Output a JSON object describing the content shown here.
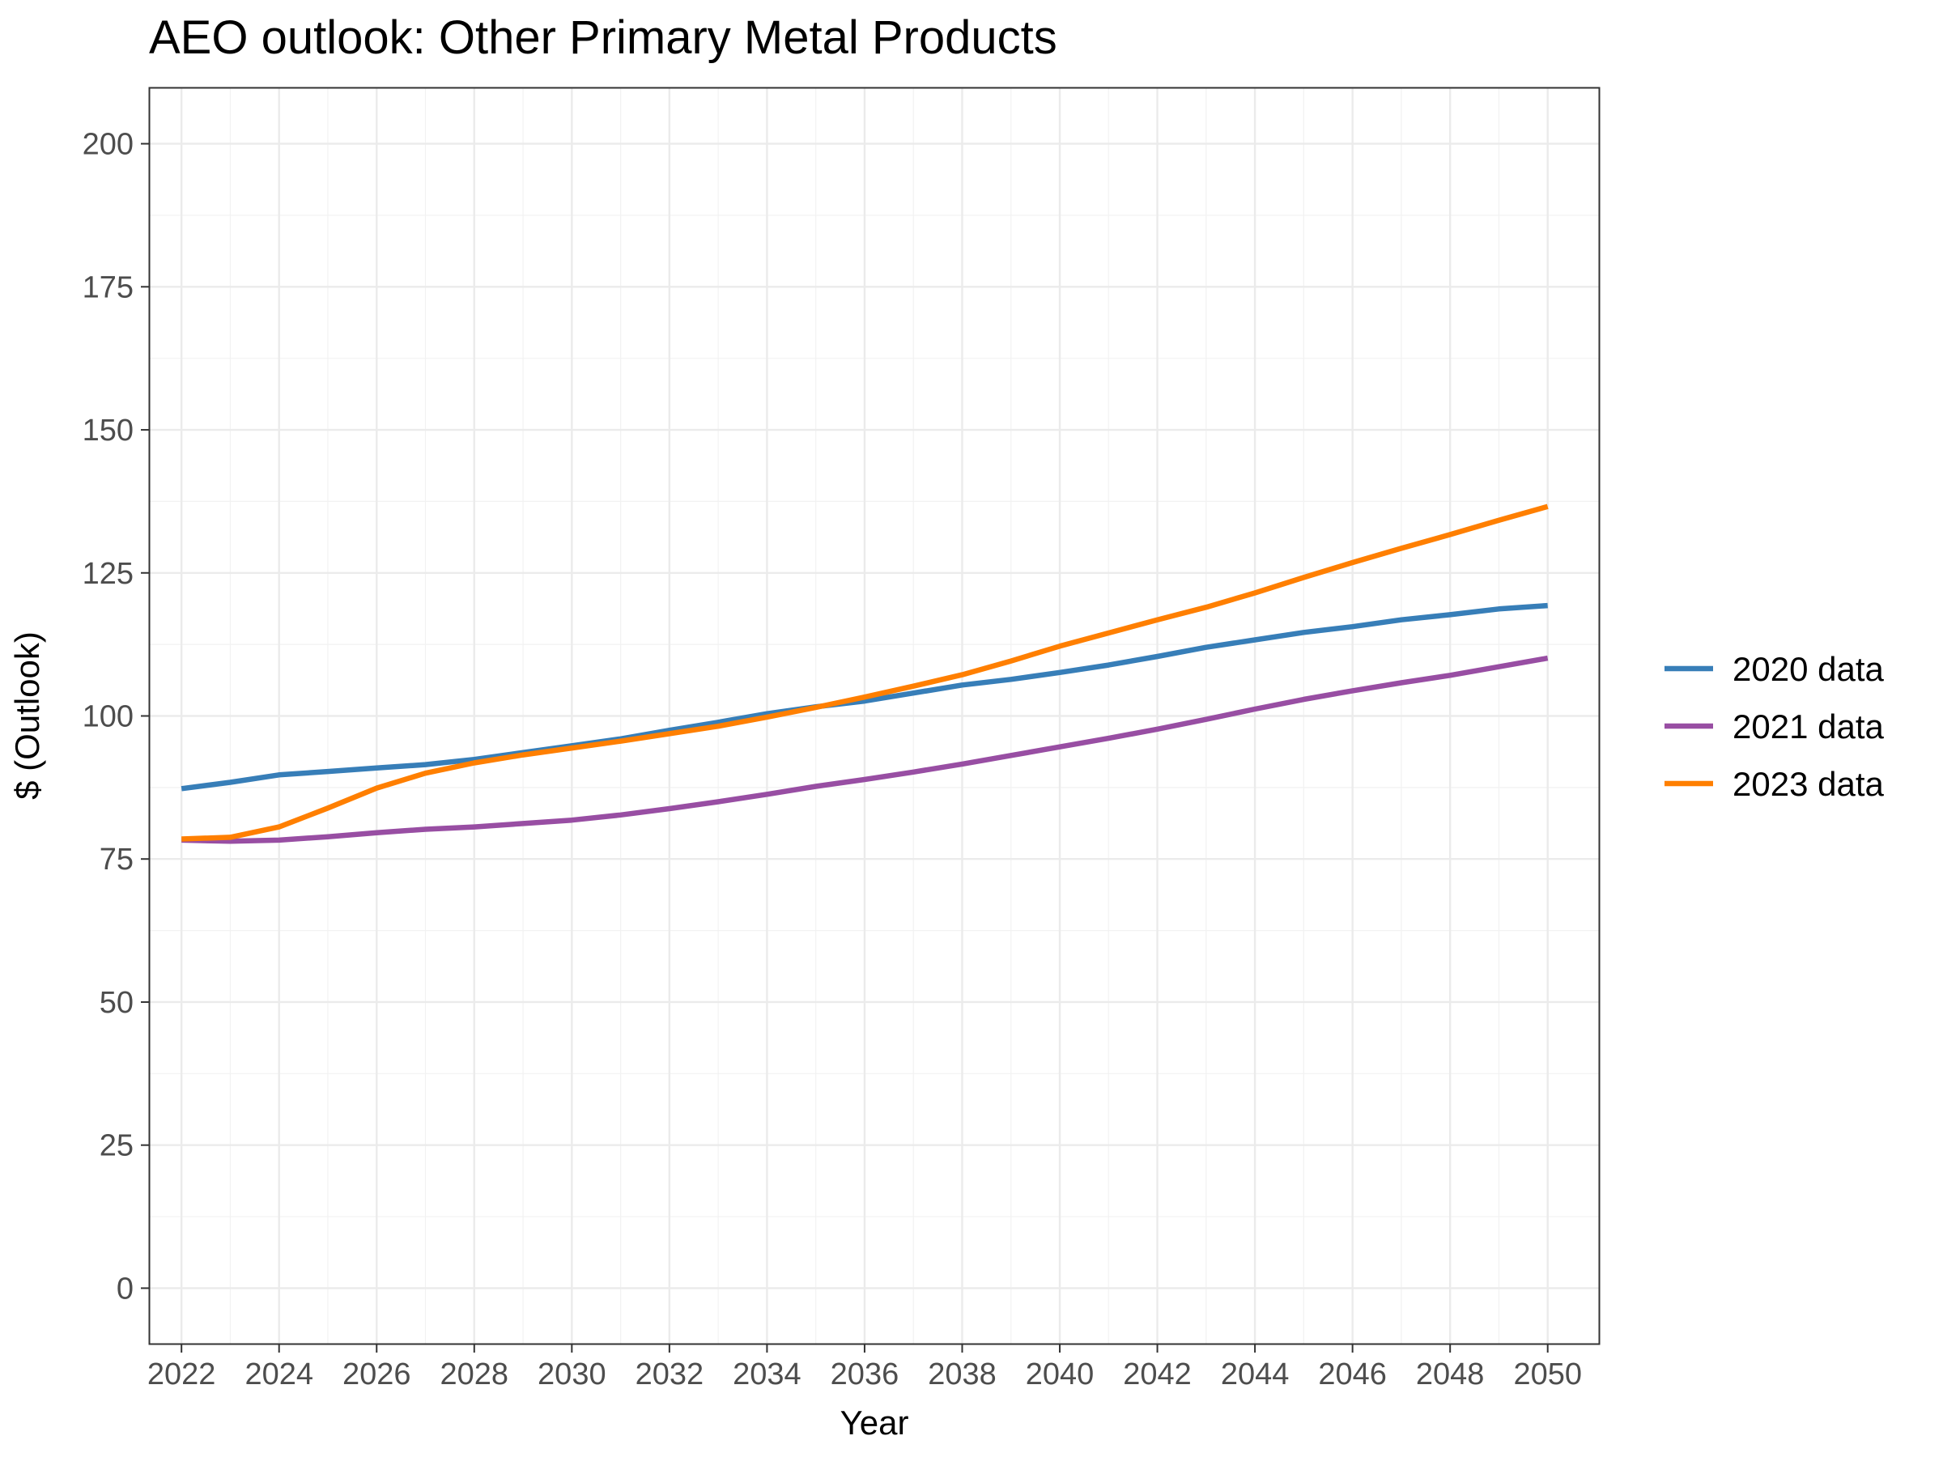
{
  "chart_data": {
    "type": "line",
    "title": "AEO outlook: Other Primary Metal Products",
    "xlabel": "Year",
    "ylabel": "$ (Outlook)",
    "xlim": [
      2021.35,
      2051.05
    ],
    "ylim": [
      -9.7,
      209.7
    ],
    "x_ticks": [
      2022,
      2024,
      2026,
      2028,
      2030,
      2032,
      2034,
      2036,
      2038,
      2040,
      2042,
      2044,
      2046,
      2048,
      2050
    ],
    "y_ticks": [
      0,
      25,
      50,
      75,
      100,
      125,
      150,
      175,
      200
    ],
    "grid": true,
    "legend_position": "right",
    "x": [
      2022,
      2023,
      2024,
      2025,
      2026,
      2027,
      2028,
      2029,
      2030,
      2031,
      2032,
      2033,
      2034,
      2035,
      2036,
      2037,
      2038,
      2039,
      2040,
      2041,
      2042,
      2043,
      2044,
      2045,
      2046,
      2047,
      2048,
      2049,
      2050
    ],
    "series": [
      {
        "name": "2020 data",
        "color": "#377eb8",
        "values": [
          87.3,
          88.4,
          89.7,
          90.3,
          90.9,
          91.5,
          92.4,
          93.6,
          94.8,
          96.0,
          97.5,
          98.9,
          100.4,
          101.6,
          102.6,
          104.0,
          105.4,
          106.4,
          107.6,
          108.9,
          110.4,
          112.0,
          113.3,
          114.6,
          115.6,
          116.8,
          117.7,
          118.7,
          119.3
        ]
      },
      {
        "name": "2021 data",
        "color": "#984ea3",
        "values": [
          78.3,
          78.1,
          78.3,
          78.9,
          79.6,
          80.2,
          80.6,
          81.2,
          81.8,
          82.7,
          83.8,
          85.0,
          86.3,
          87.7,
          88.9,
          90.2,
          91.6,
          93.1,
          94.6,
          96.1,
          97.7,
          99.4,
          101.2,
          102.9,
          104.4,
          105.8,
          107.1,
          108.6,
          110.1
        ]
      },
      {
        "name": "2023 data",
        "color": "#ff7f00",
        "values": [
          78.5,
          78.8,
          80.6,
          83.9,
          87.4,
          90.0,
          91.8,
          93.2,
          94.4,
          95.6,
          96.9,
          98.2,
          99.8,
          101.5,
          103.3,
          105.2,
          107.2,
          109.6,
          112.2,
          114.5,
          116.8,
          119.0,
          121.5,
          124.2,
          126.8,
          129.3,
          131.7,
          134.2,
          136.6
        ]
      }
    ]
  }
}
